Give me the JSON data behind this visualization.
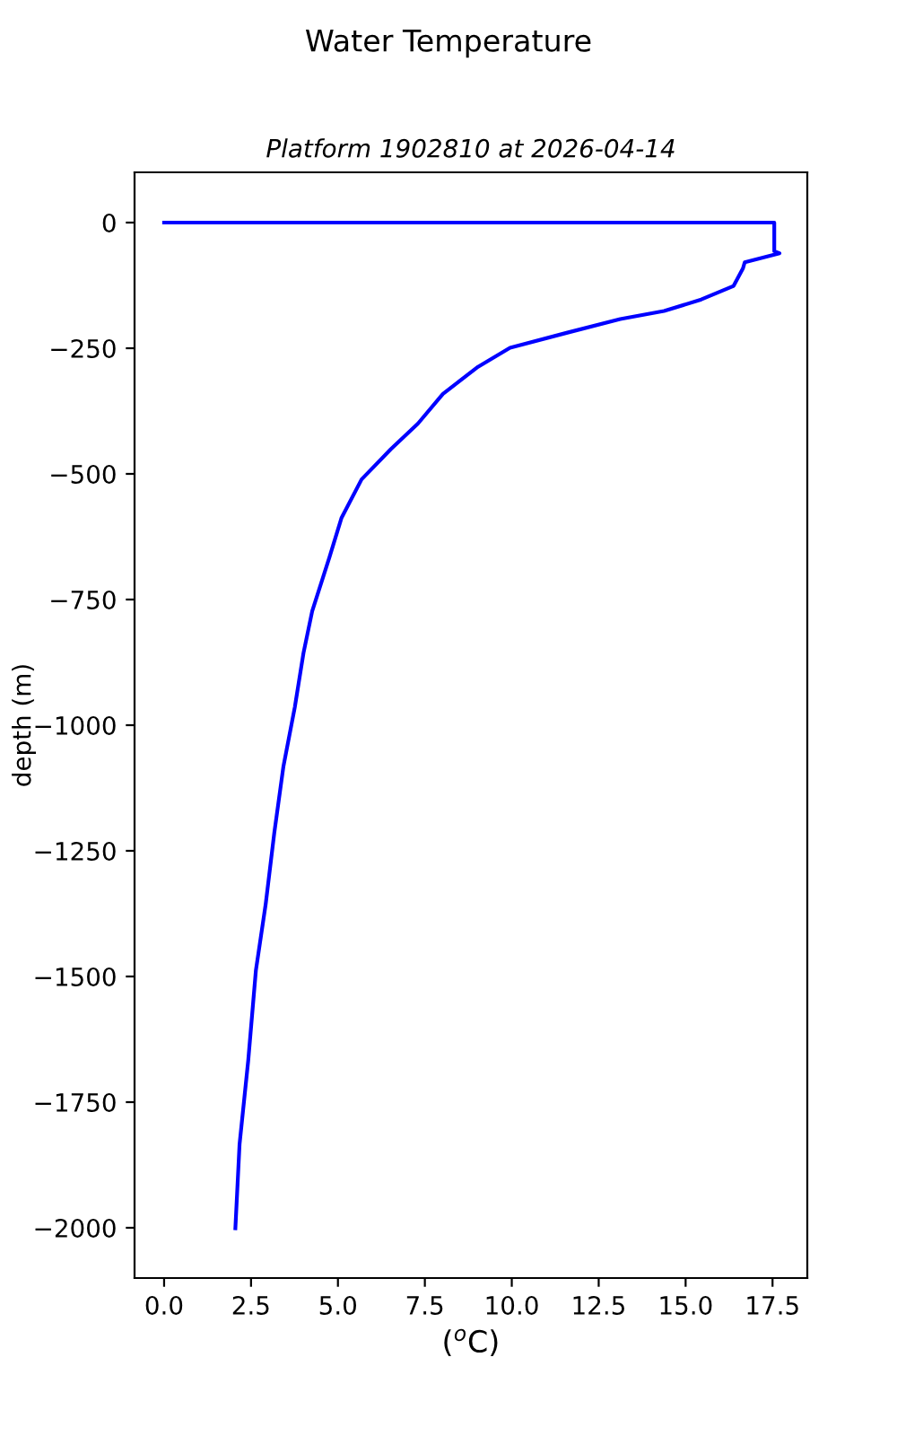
{
  "chart_data": {
    "type": "line",
    "title": "Water Temperature",
    "subtitle": "Platform 1902810 at 2026-04-14",
    "xlabel": "($^{o}$C)",
    "ylabel": "depth (m)",
    "series": [
      {
        "color": "#0000ff",
        "x": [
          0,
          17.55,
          17.55,
          17.7,
          16.7,
          16.65,
          16.38,
          15.45,
          14.38,
          13.12,
          11.6,
          9.95,
          9.03,
          8.02,
          7.3,
          6.52,
          5.68,
          5.1,
          4.76,
          4.26,
          4.01,
          3.76,
          3.43,
          3.17,
          2.92,
          2.64,
          2.42,
          2.17,
          2.05
        ],
        "values": [
          0,
          0,
          -57,
          -61,
          -79,
          -91,
          -126,
          -153,
          -176,
          -192,
          -219,
          -249,
          -287,
          -341,
          -400,
          -451,
          -511,
          -588,
          -665,
          -773,
          -856,
          -964,
          -1083,
          -1214,
          -1357,
          -1488,
          -1667,
          -1834,
          -2001
        ]
      }
    ],
    "xlim": [
      -0.85,
      18.5
    ],
    "ylim": [
      -2100,
      100
    ],
    "xticks": [
      {
        "value": 0,
        "label": "0.0"
      },
      {
        "value": 2.5,
        "label": "2.5"
      },
      {
        "value": 5,
        "label": "5.0"
      },
      {
        "value": 7.5,
        "label": "7.5"
      },
      {
        "value": 10,
        "label": "10.0"
      },
      {
        "value": 12.5,
        "label": "12.5"
      },
      {
        "value": 15,
        "label": "15.0"
      },
      {
        "value": 17.5,
        "label": "17.5"
      }
    ],
    "yticks": [
      {
        "value": 0,
        "label": "0"
      },
      {
        "value": -250,
        "label": "−250"
      },
      {
        "value": -500,
        "label": "−500"
      },
      {
        "value": -750,
        "label": "−750"
      },
      {
        "value": -1000,
        "label": "−1000"
      },
      {
        "value": -1250,
        "label": "−1250"
      },
      {
        "value": -1500,
        "label": "−1500"
      },
      {
        "value": -1750,
        "label": "−1750"
      },
      {
        "value": -2000,
        "label": "−2000"
      }
    ],
    "grid": false,
    "legend": false
  }
}
